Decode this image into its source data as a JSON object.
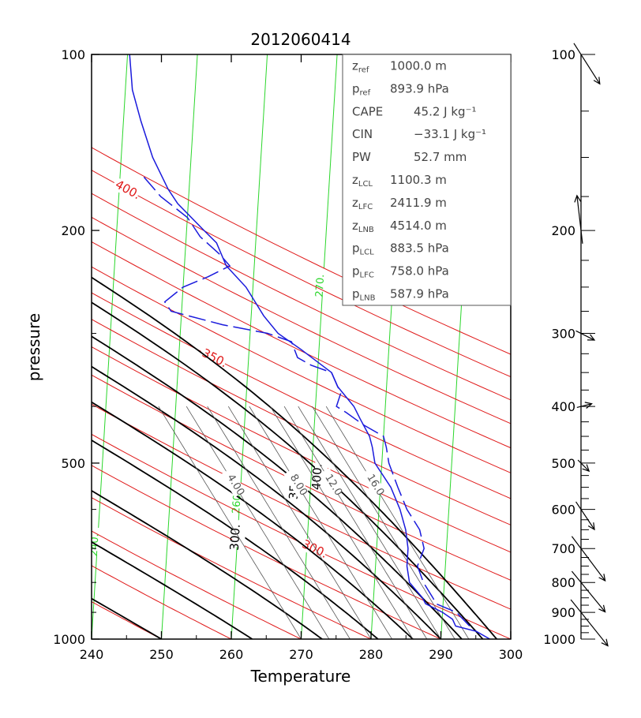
{
  "chart_data": {
    "type": "skew-t",
    "title": "2012060414",
    "xlabel": "Temperature",
    "ylabel": "pressure",
    "xlim": [
      240,
      300
    ],
    "ylim": [
      1000,
      100
    ],
    "x_ticks": [
      "240",
      "250",
      "260",
      "270",
      "280",
      "290",
      "300"
    ],
    "y_ticks": [
      {
        "p": 100,
        "label": "100"
      },
      {
        "p": 200,
        "label": "200"
      },
      {
        "p": 500,
        "label": "500"
      },
      {
        "p": 1000,
        "label": "1000"
      }
    ],
    "colors": {
      "isotherm": "#2bd62b",
      "dry_adiabat": "#e01a1a",
      "moist_adiabat": "#000000",
      "mixing_ratio": "#555555",
      "profile": "#1a1adc"
    },
    "isotherms": [
      {
        "T": 240,
        "label": "240."
      },
      {
        "T": 260,
        "label": "260."
      },
      {
        "T": 270,
        "label": "270."
      },
      {
        "T": 280,
        "label": "280."
      }
    ],
    "dry_adiabats": [
      {
        "theta": 250
      },
      {
        "theta": 260
      },
      {
        "theta": 270
      },
      {
        "theta": 280
      },
      {
        "theta": 290
      },
      {
        "theta": 300,
        "label": "300."
      },
      {
        "theta": 310
      },
      {
        "theta": 320
      },
      {
        "theta": 330
      },
      {
        "theta": 340
      },
      {
        "theta": 350,
        "label": "350."
      },
      {
        "theta": 360
      },
      {
        "theta": 370
      },
      {
        "theta": 380
      },
      {
        "theta": 390
      },
      {
        "theta": 400,
        "label": "400."
      },
      {
        "theta": 410
      }
    ],
    "moist_adiabats": [
      {
        "T1000": 250
      },
      {
        "T1000": 263
      },
      {
        "T1000": 273
      },
      {
        "T1000": 281,
        "label": "300."
      },
      {
        "T1000": 286
      },
      {
        "T1000": 290
      },
      {
        "T1000": 293,
        "label": "350."
      },
      {
        "T1000": 296,
        "label": "400."
      },
      {
        "T1000": 298
      }
    ],
    "mixing_ratio_lines": [
      {
        "T1000": 270
      },
      {
        "T1000": 274,
        "label": "4.00"
      },
      {
        "T1000": 277
      },
      {
        "T1000": 280
      },
      {
        "T1000": 283,
        "label": "8.00"
      },
      {
        "T1000": 286
      },
      {
        "T1000": 288,
        "label": "12.0"
      },
      {
        "T1000": 290
      },
      {
        "T1000": 292
      },
      {
        "T1000": 294,
        "label": "16.0"
      }
    ],
    "temperature_profile": [
      [
        1000,
        297
      ],
      [
        970,
        295
      ],
      [
        950,
        292
      ],
      [
        925,
        291.5
      ],
      [
        900,
        290
      ],
      [
        870,
        287.5
      ],
      [
        850,
        287
      ],
      [
        800,
        285
      ],
      [
        750,
        284.5
      ],
      [
        700,
        284.5
      ],
      [
        650,
        284
      ],
      [
        600,
        283
      ],
      [
        550,
        281.5
      ],
      [
        500,
        279
      ],
      [
        470,
        278.5
      ],
      [
        450,
        278
      ],
      [
        420,
        276.5
      ],
      [
        400,
        275.5
      ],
      [
        370,
        273
      ],
      [
        350,
        272
      ],
      [
        320,
        267.5
      ],
      [
        300,
        264
      ],
      [
        280,
        261.8
      ],
      [
        250,
        259
      ],
      [
        230,
        256
      ],
      [
        210,
        254.4
      ],
      [
        200,
        252.5
      ],
      [
        180,
        248.5
      ],
      [
        170,
        247
      ],
      [
        150,
        244.5
      ],
      [
        130,
        242.5
      ],
      [
        115,
        241
      ],
      [
        100,
        240.3
      ]
    ],
    "dewpoint_profile": [
      [
        950,
        294
      ],
      [
        900,
        292
      ],
      [
        870,
        289
      ],
      [
        850,
        288.5
      ],
      [
        800,
        287
      ],
      [
        750,
        286
      ],
      [
        700,
        286.8
      ],
      [
        650,
        286
      ],
      [
        600,
        284
      ],
      [
        550,
        282.5
      ],
      [
        500,
        281
      ],
      [
        470,
        280.5
      ],
      [
        450,
        280
      ],
      [
        430,
        277
      ],
      [
        410,
        274.5
      ],
      [
        400,
        273
      ],
      [
        380,
        273.5
      ],
      [
        350,
        272
      ],
      [
        340,
        269
      ],
      [
        330,
        267
      ],
      [
        310,
        266
      ],
      [
        300,
        262.5
      ],
      [
        290,
        256
      ],
      [
        275,
        248.5
      ],
      [
        265,
        247.5
      ],
      [
        250,
        250
      ],
      [
        240,
        253.5
      ],
      [
        230,
        256.5
      ],
      [
        220,
        255
      ],
      [
        205,
        252
      ],
      [
        190,
        250
      ],
      [
        175,
        246
      ],
      [
        160,
        243
      ]
    ],
    "info_box": [
      {
        "name": "z",
        "sub": "ref",
        "value": "1000.0 m"
      },
      {
        "name": "p",
        "sub": "ref",
        "value": "893.9 hPa"
      },
      {
        "name": "CAPE",
        "sub": "",
        "value": "45.2 J kg⁻¹"
      },
      {
        "name": "CIN",
        "sub": "",
        "value": "−33.1 J kg⁻¹"
      },
      {
        "name": "PW",
        "sub": "",
        "value": "52.7 mm"
      },
      {
        "name": "z",
        "sub": "LCL",
        "value": "1100.3 m"
      },
      {
        "name": "z",
        "sub": "LFC",
        "value": "2411.9 m"
      },
      {
        "name": "z",
        "sub": "LNB",
        "value": "4514.0 m"
      },
      {
        "name": "p",
        "sub": "LCL",
        "value": "883.5 hPa"
      },
      {
        "name": "p",
        "sub": "LFC",
        "value": "758.0 hPa"
      },
      {
        "name": "p",
        "sub": "LNB",
        "value": "587.9 hPa"
      }
    ],
    "wind_profile": {
      "ticks": [
        {
          "p": 100,
          "label": "100"
        },
        {
          "p": 200,
          "label": "200"
        },
        {
          "p": 300,
          "label": "300"
        },
        {
          "p": 400,
          "label": "400"
        },
        {
          "p": 500,
          "label": "500"
        },
        {
          "p": 600,
          "label": "600"
        },
        {
          "p": 700,
          "label": "700"
        },
        {
          "p": 800,
          "label": "800"
        },
        {
          "p": 900,
          "label": "900"
        },
        {
          "p": 1000,
          "label": "1000"
        }
      ],
      "vectors": [
        {
          "p": 100,
          "u": 14,
          "v": -22
        },
        {
          "p": 200,
          "u": -3,
          "v": 26
        },
        {
          "p": 300,
          "u": 10,
          "v": -5
        },
        {
          "p": 400,
          "u": 8,
          "v": 2
        },
        {
          "p": 500,
          "u": 6,
          "v": -6
        },
        {
          "p": 600,
          "u": 10,
          "v": -15
        },
        {
          "p": 700,
          "u": 18,
          "v": -24
        },
        {
          "p": 800,
          "u": 18,
          "v": -22
        },
        {
          "p": 900,
          "u": 20,
          "v": -25
        }
      ]
    }
  }
}
